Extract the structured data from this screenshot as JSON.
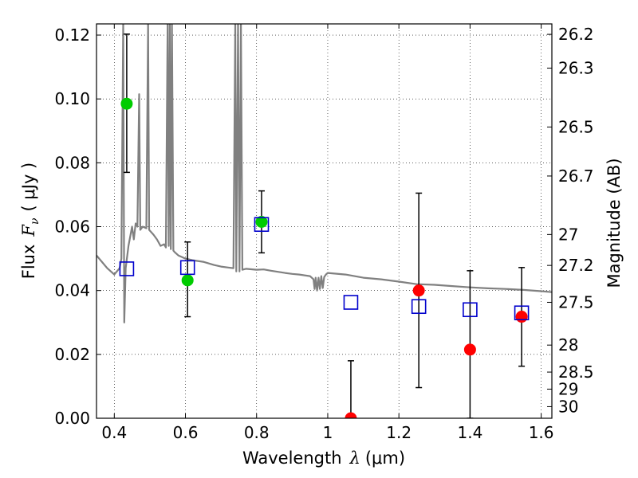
{
  "chart_data": {
    "type": "scatter",
    "xlabel_prefix": "Wavelength",
    "xlabel_symbol": "λ",
    "xlabel_unit": "(μm)",
    "ylabel_prefix": "Flux",
    "ylabel_symbol": "F",
    "ylabel_sub": "ν",
    "ylabel_unit": "( μJy )",
    "ylabel_right": "Magnitude (AB)",
    "xlim": [
      0.35,
      1.63
    ],
    "ylim": [
      0.0,
      0.1235
    ],
    "x_ticks": [
      0.4,
      0.6,
      0.8,
      1.0,
      1.2,
      1.4,
      1.6
    ],
    "x_tick_labels": [
      "0.4",
      "0.6",
      "0.8",
      "1",
      "1.2",
      "1.4",
      "1.6"
    ],
    "y_ticks": [
      0.0,
      0.02,
      0.04,
      0.06,
      0.08,
      0.1,
      0.12
    ],
    "y_tick_labels": [
      "0.00",
      "0.02",
      "0.04",
      "0.06",
      "0.08",
      "0.10",
      "0.12"
    ],
    "mag_ticks": [
      26.2,
      26.3,
      26.5,
      26.7,
      27,
      27.2,
      27.5,
      28,
      28.5,
      29,
      30
    ],
    "mag_tick_labels": [
      "26.2",
      "26.3",
      "26.5",
      "26.7",
      "27",
      "27.2",
      "27.5",
      "28",
      "28.5",
      "29",
      "30"
    ],
    "colors": {
      "green": "#00cc00",
      "red": "#ff0000",
      "model_square": "#0000cc",
      "sed": "#808080",
      "errorbar": "#000000"
    },
    "observed_points": [
      {
        "x": 0.435,
        "y": 0.0985,
        "err_low": 0.077,
        "err_high": 0.1203,
        "color": "green"
      },
      {
        "x": 0.606,
        "y": 0.0432,
        "err_low": 0.0318,
        "err_high": 0.0552,
        "color": "green"
      },
      {
        "x": 0.814,
        "y": 0.0615,
        "err_low": 0.0518,
        "err_high": 0.0712,
        "color": "green"
      },
      {
        "x": 1.065,
        "y": 0.0,
        "err_low": 0.0,
        "err_high": 0.018,
        "color": "red"
      },
      {
        "x": 1.256,
        "y": 0.04,
        "err_low": 0.0096,
        "err_high": 0.0705,
        "color": "red"
      },
      {
        "x": 1.4,
        "y": 0.0215,
        "err_low": 0.0,
        "err_high": 0.0462,
        "color": "red"
      },
      {
        "x": 1.545,
        "y": 0.0318,
        "err_low": 0.0163,
        "err_high": 0.0472,
        "color": "red"
      }
    ],
    "model_points": [
      {
        "x": 0.435,
        "y": 0.0468
      },
      {
        "x": 0.606,
        "y": 0.0472
      },
      {
        "x": 0.814,
        "y": 0.0607
      },
      {
        "x": 1.065,
        "y": 0.0363
      },
      {
        "x": 1.256,
        "y": 0.035
      },
      {
        "x": 1.4,
        "y": 0.034
      },
      {
        "x": 1.545,
        "y": 0.033
      }
    ],
    "sed_curve": [
      [
        0.35,
        0.051
      ],
      [
        0.38,
        0.047
      ],
      [
        0.4,
        0.045
      ],
      [
        0.415,
        0.047
      ],
      [
        0.42,
        0.05
      ],
      [
        0.425,
        0.1235
      ],
      [
        0.428,
        0.03
      ],
      [
        0.432,
        0.047
      ],
      [
        0.44,
        0.054
      ],
      [
        0.45,
        0.06
      ],
      [
        0.455,
        0.056
      ],
      [
        0.46,
        0.061
      ],
      [
        0.465,
        0.06
      ],
      [
        0.47,
        0.1015
      ],
      [
        0.473,
        0.059
      ],
      [
        0.48,
        0.06
      ],
      [
        0.49,
        0.0595
      ],
      [
        0.495,
        0.1235
      ],
      [
        0.498,
        0.059
      ],
      [
        0.51,
        0.0575
      ],
      [
        0.52,
        0.056
      ],
      [
        0.53,
        0.054
      ],
      [
        0.54,
        0.0545
      ],
      [
        0.545,
        0.0535
      ],
      [
        0.55,
        0.1235
      ],
      [
        0.553,
        0.054
      ],
      [
        0.556,
        0.1235
      ],
      [
        0.559,
        0.053
      ],
      [
        0.562,
        0.1235
      ],
      [
        0.566,
        0.0525
      ],
      [
        0.57,
        0.052
      ],
      [
        0.58,
        0.051
      ],
      [
        0.6,
        0.05
      ],
      [
        0.62,
        0.0495
      ],
      [
        0.65,
        0.049
      ],
      [
        0.68,
        0.048
      ],
      [
        0.7,
        0.0475
      ],
      [
        0.72,
        0.0472
      ],
      [
        0.735,
        0.047
      ],
      [
        0.74,
        0.1235
      ],
      [
        0.743,
        0.046
      ],
      [
        0.748,
        0.1235
      ],
      [
        0.752,
        0.046
      ],
      [
        0.756,
        0.1235
      ],
      [
        0.76,
        0.0465
      ],
      [
        0.77,
        0.0468
      ],
      [
        0.8,
        0.0465
      ],
      [
        0.82,
        0.0466
      ],
      [
        0.84,
        0.0462
      ],
      [
        0.88,
        0.0455
      ],
      [
        0.9,
        0.0452
      ],
      [
        0.92,
        0.045
      ],
      [
        0.95,
        0.0445
      ],
      [
        0.96,
        0.0435
      ],
      [
        0.963,
        0.0405
      ],
      [
        0.966,
        0.044
      ],
      [
        0.97,
        0.04
      ],
      [
        0.974,
        0.044
      ],
      [
        0.978,
        0.0405
      ],
      [
        0.982,
        0.0445
      ],
      [
        0.986,
        0.0408
      ],
      [
        0.99,
        0.0442
      ],
      [
        0.995,
        0.045
      ],
      [
        1.0,
        0.0455
      ],
      [
        1.05,
        0.045
      ],
      [
        1.1,
        0.044
      ],
      [
        1.15,
        0.0435
      ],
      [
        1.2,
        0.0428
      ],
      [
        1.25,
        0.042
      ],
      [
        1.3,
        0.0418
      ],
      [
        1.35,
        0.0414
      ],
      [
        1.4,
        0.041
      ],
      [
        1.45,
        0.0407
      ],
      [
        1.5,
        0.0405
      ],
      [
        1.55,
        0.0402
      ],
      [
        1.6,
        0.0398
      ],
      [
        1.63,
        0.0395
      ]
    ]
  }
}
